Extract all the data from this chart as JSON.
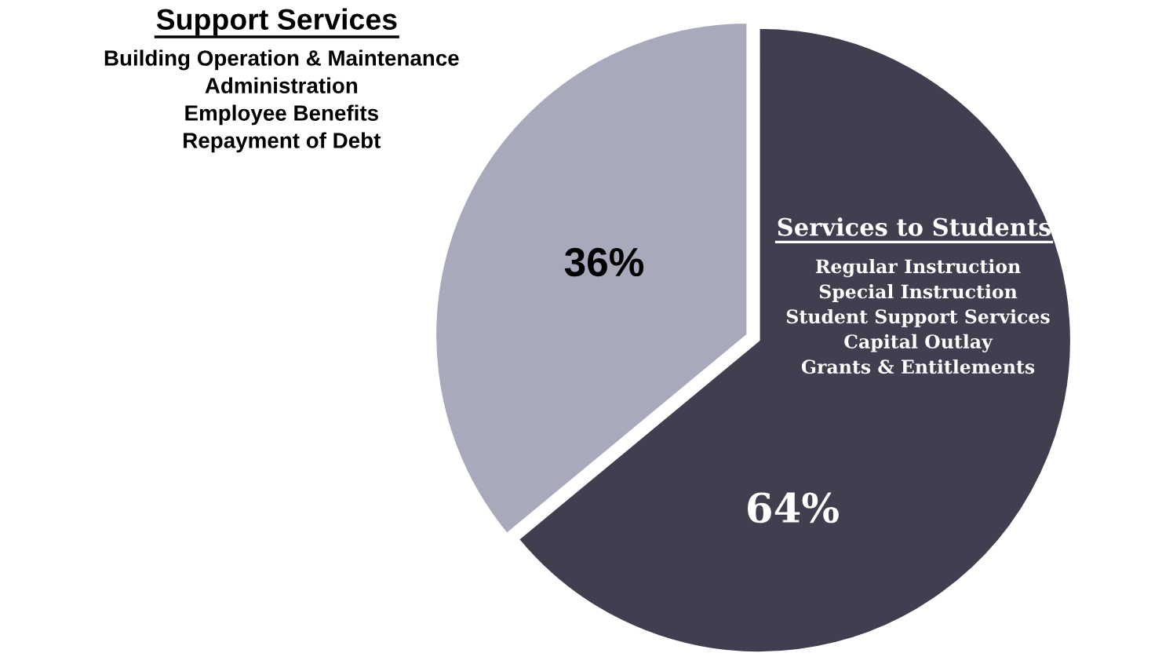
{
  "chart_data": {
    "type": "pie",
    "categories": [
      "Support Services",
      "Services to Students"
    ],
    "values": [
      36,
      64
    ],
    "colors": [
      "#a9a9bc",
      "#3f3f50"
    ],
    "value_labels": [
      "36%",
      "64%"
    ],
    "annotations": [
      "Building Operation & Maintenance\nAdministration\nEmployee Benefits\nRepayment of Debt",
      "Regular Instruction\nSpecial Instruction\nStudent Support Services\nCapital Outlay\nGrants & Entitlements"
    ]
  }
}
